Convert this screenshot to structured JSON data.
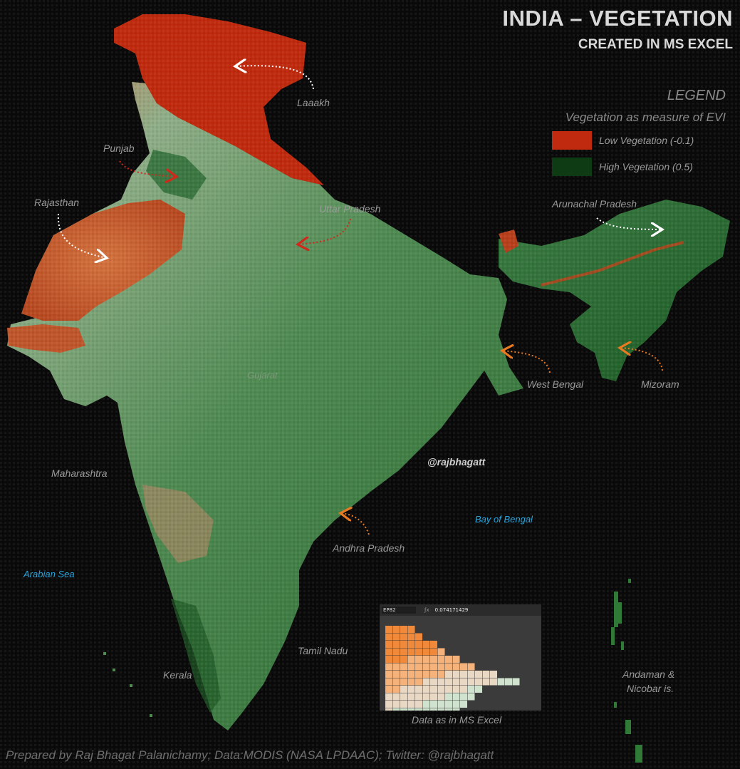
{
  "header": {
    "title": "INDIA – VEGETATION",
    "subtitle": "CREATED IN MS EXCEL"
  },
  "legend": {
    "heading": "LEGEND",
    "subheading": "Vegetation as measure of EVI",
    "items": [
      {
        "label": "Low Vegetation (-0.1)",
        "color": "#c02a0f"
      },
      {
        "label": "High Vegetation (0.5)",
        "color": "#0e3a14"
      }
    ]
  },
  "regions": {
    "ladakh": "Laaakh",
    "punjab": "Punjab",
    "rajasthan": "Rajasthan",
    "uttar_pradesh": "Uttar Pradesh",
    "arunachal_pradesh": "Arunachal Pradesh",
    "west_bengal": "West Bengal",
    "mizoram": "Mizoram",
    "gujarat": "Gujarat",
    "maharashtra": "Maharashtra",
    "andhra_pradesh": "Andhra Pradesh",
    "tamil_nadu": "Tamil Nadu",
    "kerala": "Kerala",
    "andaman_line1": "Andaman &",
    "andaman_line2": "Nicobar is."
  },
  "seas": {
    "arabian_sea": "Arabian Sea",
    "bay_of_bengal": "Bay of Bengal"
  },
  "handle": "@rajbhagatt",
  "excel_inset": {
    "name_box": "EP82",
    "formula": "0.074171429",
    "caption": "Data as in MS Excel"
  },
  "footer": "Prepared by Raj Bhagat Palanichamy; Data:MODIS (NASA LPDAAC); Twitter: @rajbhagatt",
  "colors": {
    "low": "#c02a0f",
    "mid": "#9eb596",
    "high": "#1f6b2a",
    "arrow_white": "#ffffff",
    "arrow_red": "#d0281a",
    "arrow_orange": "#e87a22",
    "sea_label": "#2aa6df"
  }
}
